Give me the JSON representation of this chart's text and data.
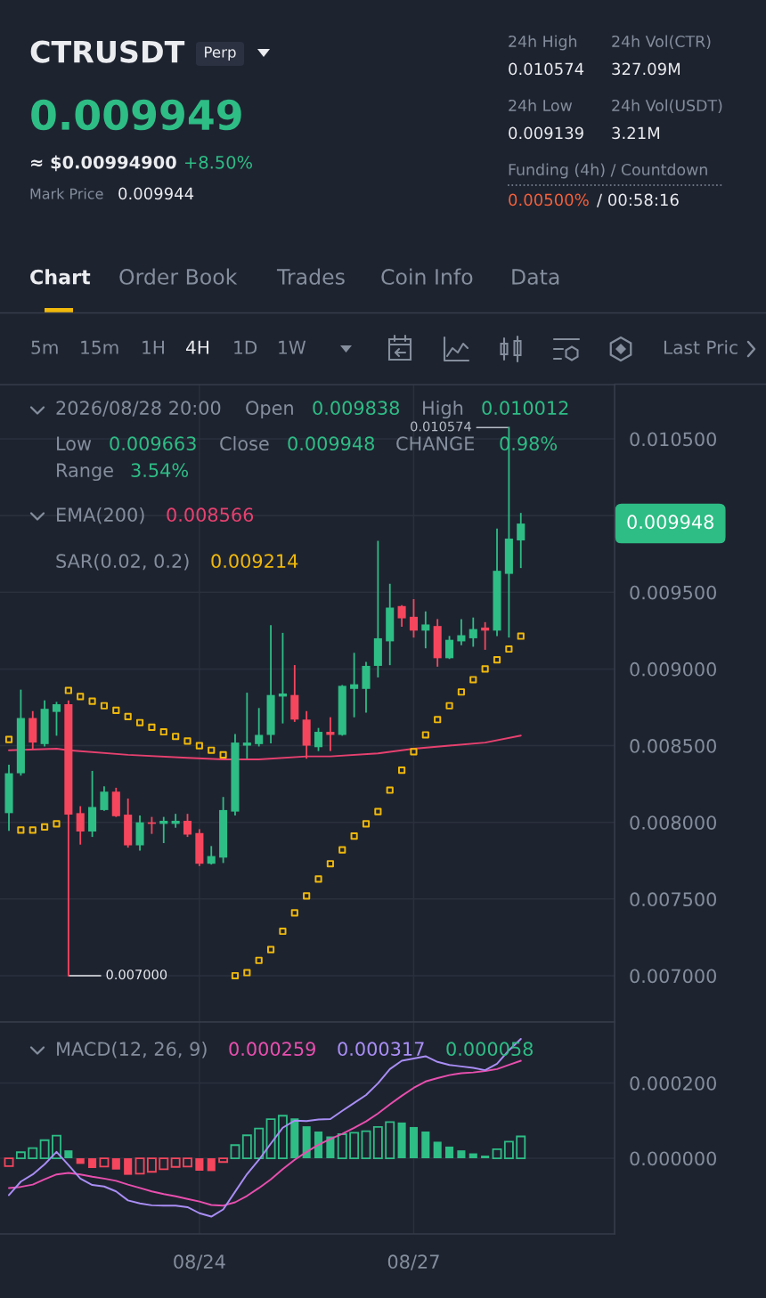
{
  "chart_data": [
    {
      "type": "other",
      "title": "CTRUSDT",
      "annotations": [
        "Perp",
        "0.009949",
        "≈ $0.00994900",
        "+8.50%",
        "Mark Price",
        "0.009944",
        "24h High",
        "24h Vol(CTR)",
        "0.010574",
        "327.09M",
        "24h Low",
        "24h Vol(USDT)",
        "0.009139",
        "3.21M",
        "Funding (4h) / Countdown",
        "0.00500%",
        "/ 00:58:16",
        "Chart",
        "Order Book",
        "Trades",
        "Coin Info",
        "Data",
        "5m",
        "15m",
        "1H",
        "4H",
        "1D",
        "1W",
        "Last Pric"
      ]
    },
    {
      "type": "candlestick",
      "x": [
        "2026-08-21T16:00",
        "2026-08-21T20:00",
        "2026-08-22T00:00",
        "2026-08-22T04:00",
        "2026-08-22T08:00",
        "2026-08-22T12:00",
        "2026-08-22T16:00",
        "2026-08-22T20:00",
        "2026-08-23T00:00",
        "2026-08-23T04:00",
        "2026-08-23T08:00",
        "2026-08-23T12:00",
        "2026-08-23T16:00",
        "2026-08-23T20:00",
        "2026-08-24T00:00",
        "2026-08-24T04:00",
        "2026-08-24T08:00",
        "2026-08-24T12:00",
        "2026-08-24T16:00",
        "2026-08-24T20:00",
        "2026-08-25T00:00",
        "2026-08-25T04:00",
        "2026-08-25T08:00",
        "2026-08-25T12:00",
        "2026-08-25T16:00",
        "2026-08-25T20:00",
        "2026-08-26T00:00",
        "2026-08-26T04:00",
        "2026-08-26T08:00",
        "2026-08-26T12:00",
        "2026-08-26T16:00",
        "2026-08-26T20:00",
        "2026-08-27T00:00",
        "2026-08-27T04:00",
        "2026-08-27T08:00",
        "2026-08-27T12:00",
        "2026-08-27T16:00",
        "2026-08-27T20:00",
        "2026-08-28T00:00",
        "2026-08-28T04:00",
        "2026-08-28T08:00",
        "2026-08-28T12:00",
        "2026-08-28T16:00",
        "2026-08-28T20:00"
      ],
      "ohlc": [
        [
          0.00806,
          0.00837,
          0.00795,
          0.00832
        ],
        [
          0.00832,
          0.00886,
          0.00831,
          0.00868
        ],
        [
          0.00868,
          0.00872,
          0.00848,
          0.00852
        ],
        [
          0.00851,
          0.00879,
          0.0085,
          0.00874
        ],
        [
          0.00872,
          0.00878,
          0.00857,
          0.00877
        ],
        [
          0.00877,
          0.00879,
          0.007,
          0.00805
        ],
        [
          0.00806,
          0.0081,
          0.00786,
          0.00794
        ],
        [
          0.00794,
          0.00833,
          0.00791,
          0.0081
        ],
        [
          0.00808,
          0.00823,
          0.00808,
          0.0082
        ],
        [
          0.0082,
          0.00822,
          0.00804,
          0.00804
        ],
        [
          0.00805,
          0.00815,
          0.00784,
          0.00785
        ],
        [
          0.00785,
          0.00804,
          0.00782,
          0.008
        ],
        [
          0.008,
          0.00803,
          0.00793,
          0.00799
        ],
        [
          0.00799,
          0.00803,
          0.00787,
          0.00801
        ],
        [
          0.00799,
          0.00805,
          0.00797,
          0.00801
        ],
        [
          0.00801,
          0.00805,
          0.00791,
          0.00792
        ],
        [
          0.00793,
          0.00795,
          0.00772,
          0.00773
        ],
        [
          0.00773,
          0.00784,
          0.00773,
          0.00778
        ],
        [
          0.00777,
          0.00816,
          0.00774,
          0.00808
        ],
        [
          0.00807,
          0.00857,
          0.00805,
          0.00852
        ],
        [
          0.0085,
          0.00884,
          0.00842,
          0.00852
        ],
        [
          0.00851,
          0.00874,
          0.0085,
          0.00857
        ],
        [
          0.00857,
          0.00928,
          0.00852,
          0.00883
        ],
        [
          0.00882,
          0.00923,
          0.00865,
          0.00884
        ],
        [
          0.00883,
          0.00902,
          0.00866,
          0.00867
        ],
        [
          0.00867,
          0.00872,
          0.00842,
          0.0085
        ],
        [
          0.00849,
          0.00861,
          0.00847,
          0.00859
        ],
        [
          0.00859,
          0.00868,
          0.00847,
          0.00857
        ],
        [
          0.00857,
          0.00889,
          0.00857,
          0.00889
        ],
        [
          0.00887,
          0.0091,
          0.00869,
          0.0089
        ],
        [
          0.00887,
          0.00904,
          0.00872,
          0.00902
        ],
        [
          0.00902,
          0.00983,
          0.00895,
          0.0092
        ],
        [
          0.00918,
          0.00955,
          0.00903,
          0.0094
        ],
        [
          0.00941,
          0.00941,
          0.00928,
          0.00933
        ],
        [
          0.00934,
          0.00945,
          0.00921,
          0.00925
        ],
        [
          0.00925,
          0.00937,
          0.00914,
          0.00929
        ],
        [
          0.00928,
          0.00932,
          0.00902,
          0.00907
        ],
        [
          0.00907,
          0.00921,
          0.00907,
          0.00919
        ],
        [
          0.00918,
          0.00932,
          0.00916,
          0.00922
        ],
        [
          0.0092,
          0.00933,
          0.00915,
          0.00926
        ],
        [
          0.00927,
          0.0093,
          0.00913,
          0.00925
        ],
        [
          0.00925,
          0.00991,
          0.00922,
          0.00964
        ],
        [
          0.00962,
          0.010574,
          0.00921,
          0.00985
        ],
        [
          0.009838,
          0.010012,
          0.009663,
          0.009948
        ]
      ],
      "colors": [
        "#2ebd85",
        "#2ebd85",
        "#f6465d",
        "#2ebd85",
        "#2ebd85",
        "#f6465d",
        "#f6465d",
        "#2ebd85",
        "#2ebd85",
        "#f6465d",
        "#f6465d",
        "#2ebd85",
        "#f6465d",
        "#2ebd85",
        "#2ebd85",
        "#f6465d",
        "#f6465d",
        "#2ebd85",
        "#2ebd85",
        "#2ebd85",
        "#2ebd85",
        "#2ebd85",
        "#2ebd85",
        "#2ebd85",
        "#f6465d",
        "#f6465d",
        "#2ebd85",
        "#f6465d",
        "#2ebd85",
        "#2ebd85",
        "#2ebd85",
        "#2ebd85",
        "#2ebd85",
        "#f6465d",
        "#f6465d",
        "#2ebd85",
        "#f6465d",
        "#2ebd85",
        "#2ebd85",
        "#2ebd85",
        "#f6465d",
        "#2ebd85",
        "#2ebd85",
        "#2ebd85"
      ],
      "series": [
        {
          "type": "line",
          "color": "#e8416f",
          "x": [
            "2026-08-21T16:00",
            "2026-08-22T08:00",
            "2026-08-22T12:00",
            "2026-08-23T08:00",
            "2026-08-24T04:00",
            "2026-08-24T16:00",
            "2026-08-25T04:00",
            "2026-08-25T20:00",
            "2026-08-26T04:00",
            "2026-08-26T20:00",
            "2026-08-27T08:00",
            "2026-08-27T20:00",
            "2026-08-28T08:00",
            "2026-08-28T20:00"
          ],
          "values": [
            0.00847,
            0.00848,
            0.00847,
            0.00844,
            0.00842,
            0.00841,
            0.00841,
            0.00843,
            0.00843,
            0.00845,
            0.00848,
            0.0085,
            0.00852,
            0.008566
          ]
        },
        {
          "type": "scatter",
          "color": "#f0b90b",
          "marker": "square",
          "values": [
            0.00854,
            0.00795,
            0.00795,
            0.00797,
            0.00799,
            0.00886,
            0.00882,
            0.00879,
            0.00876,
            0.00873,
            0.00869,
            0.00865,
            0.00862,
            0.00859,
            0.00856,
            0.00853,
            0.0085,
            0.00847,
            0.00844,
            0.007,
            0.00702,
            0.0071,
            0.00717,
            0.00729,
            0.00741,
            0.00752,
            0.00763,
            0.00773,
            0.00782,
            0.00791,
            0.00799,
            0.00807,
            0.00821,
            0.00834,
            0.00846,
            0.00857,
            0.00867,
            0.00876,
            0.00885,
            0.00893,
            0.009,
            0.00906,
            0.00913,
            0.009214
          ]
        }
      ],
      "annotations": [
        "2026/08/28 20:00",
        "Open",
        "0.009838",
        "High",
        "0.010012",
        "Low",
        "0.009663",
        "Close",
        "0.009948",
        "CHANGE",
        "0.98%",
        "Range",
        "3.54%",
        "EMA(200)",
        "0.008566",
        "SAR(0.02, 0.2)",
        "0.009214",
        "0.009948",
        {
          "text": "0.010574",
          "x": "2026-08-28T16:00",
          "y": 0.010574
        },
        {
          "text": "0.007000",
          "x": "2026-08-22T12:00",
          "y": 0.007
        }
      ],
      "xlim": [
        "2026-08-21T13:00",
        "2026-08-30T03:30"
      ],
      "xticks": [
        {
          "value": "2026-08-24T08:00",
          "label": null
        },
        {
          "value": "2026-08-27T08:00",
          "label": null
        }
      ],
      "ylim": [
        0.006698,
        0.010854
      ],
      "yticks": [
        {
          "value": 0.007,
          "label": "0.007000"
        },
        {
          "value": 0.0075,
          "label": "0.007500"
        },
        {
          "value": 0.008,
          "label": "0.008000"
        },
        {
          "value": 0.0085,
          "label": "0.008500"
        },
        {
          "value": 0.009,
          "label": "0.009000"
        },
        {
          "value": 0.0095,
          "label": "0.009500"
        },
        {
          "value": 0.01,
          "label": null
        },
        {
          "value": 0.0105,
          "label": "0.010500"
        }
      ],
      "tick_labels": "y",
      "grid": true
    },
    {
      "type": "bar",
      "title": "MACD(12, 26, 9)",
      "x": [
        "2026-08-21T16:00",
        "2026-08-21T20:00",
        "2026-08-22T00:00",
        "2026-08-22T04:00",
        "2026-08-22T08:00",
        "2026-08-22T12:00",
        "2026-08-22T16:00",
        "2026-08-22T20:00",
        "2026-08-23T00:00",
        "2026-08-23T04:00",
        "2026-08-23T08:00",
        "2026-08-23T12:00",
        "2026-08-23T16:00",
        "2026-08-23T20:00",
        "2026-08-24T00:00",
        "2026-08-24T04:00",
        "2026-08-24T08:00",
        "2026-08-24T12:00",
        "2026-08-24T16:00",
        "2026-08-24T20:00",
        "2026-08-25T00:00",
        "2026-08-25T04:00",
        "2026-08-25T08:00",
        "2026-08-25T12:00",
        "2026-08-25T16:00",
        "2026-08-25T20:00",
        "2026-08-26T00:00",
        "2026-08-26T04:00",
        "2026-08-26T08:00",
        "2026-08-26T12:00",
        "2026-08-26T16:00",
        "2026-08-26T20:00",
        "2026-08-27T00:00",
        "2026-08-27T04:00",
        "2026-08-27T08:00",
        "2026-08-27T12:00",
        "2026-08-27T16:00",
        "2026-08-27T20:00",
        "2026-08-28T00:00",
        "2026-08-28T04:00",
        "2026-08-28T08:00",
        "2026-08-28T12:00",
        "2026-08-28T16:00",
        "2026-08-28T20:00"
      ],
      "series": [
        {
          "type": "line",
          "color": "#e84fae",
          "values": [
            -7.9e-05,
            -7.6e-05,
            -7e-05,
            -5.6e-05,
            -4.3e-05,
            -3.9e-05,
            -4.3e-05,
            -4.9e-05,
            -5.4e-05,
            -6e-05,
            -7e-05,
            -7.9e-05,
            -8.8e-05,
            -9.5e-05,
            -0.000101,
            -0.000108,
            -0.000115,
            -0.000124,
            -0.000126,
            -0.000117,
            -0.0001,
            -7.9e-05,
            -5.6e-05,
            -2.9e-05,
            -4e-06,
            1.7e-05,
            3.6e-05,
            5.1e-05,
            6.5e-05,
            8.1e-05,
            9.8e-05,
            0.000119,
            0.000143,
            0.000166,
            0.000187,
            0.000204,
            0.000213,
            0.000221,
            0.000226,
            0.000228,
            0.000232,
            0.000237,
            0.000248,
            0.000259
          ]
        },
        {
          "type": "line",
          "color": "#a98ef5",
          "values": [
            -9.8e-05,
            -6.2e-05,
            -4.3e-05,
            -1.6e-05,
            1.7e-05,
            -1.8e-05,
            -5.4e-05,
            -7.1e-05,
            -7.5e-05,
            -8.8e-05,
            -0.000112,
            -0.00012,
            -0.000125,
            -0.000126,
            -0.000126,
            -0.00013,
            -0.000146,
            -0.000155,
            -0.000136,
            -8.9e-05,
            -4.2e-05,
            -4e-06,
            3.9e-05,
            8.1e-05,
            0.0001,
            9.9e-05,
            0.000103,
            0.000104,
            0.000126,
            0.000147,
            0.000168,
            0.000199,
            0.000237,
            0.000259,
            0.000265,
            0.000271,
            0.000256,
            0.000248,
            0.000244,
            0.00024,
            0.000234,
            0.000251,
            0.000287,
            0.000317
          ]
        },
        {
          "type": "bar",
          "color": "#2ebd85",
          "colors": [
            "#f6465d",
            "#2ebd85",
            "#2ebd85",
            "#2ebd85",
            "#2ebd85",
            "#2ebd85",
            "#f6465d",
            "#f6465d",
            "#f6465d",
            "#f6465d",
            "#f6465d",
            "#f6465d",
            "#f6465d",
            "#f6465d",
            "#f6465d",
            "#f6465d",
            "#f6465d",
            "#f6465d",
            "#f6465d",
            "#2ebd85",
            "#2ebd85",
            "#2ebd85",
            "#2ebd85",
            "#2ebd85",
            "#2ebd85",
            "#2ebd85",
            "#2ebd85",
            "#2ebd85",
            "#2ebd85",
            "#2ebd85",
            "#2ebd85",
            "#2ebd85",
            "#2ebd85",
            "#2ebd85",
            "#2ebd85",
            "#2ebd85",
            "#2ebd85",
            "#2ebd85",
            "#2ebd85",
            "#2ebd85",
            "#2ebd85",
            "#2ebd85",
            "#2ebd85",
            "#2ebd85"
          ],
          "values": [
            -2.1e-05,
            1.6e-05,
            2.7e-05,
            4.8e-05,
            6e-05,
            2.1e-05,
            -1.5e-05,
            -2.6e-05,
            -2.2e-05,
            -3e-05,
            -4.4e-05,
            -4.1e-05,
            -3.6e-05,
            -2.9e-05,
            -2.3e-05,
            -2.2e-05,
            -3.3e-05,
            -3.4e-05,
            -1e-05,
            3.5e-05,
            6.1e-05,
            7.9e-05,
            0.000104,
            0.000113,
            0.000106,
            8.5e-05,
            7.1e-05,
            5.8e-05,
            6.4e-05,
            6.8e-05,
            7.2e-05,
            8.3e-05,
            9.6e-05,
            9.5e-05,
            8.3e-05,
            7.1e-05,
            4.4e-05,
            3.1e-05,
            2.1e-05,
            1.3e-05,
            7e-06,
            2.4e-05,
            4.4e-05,
            5.8e-05
          ]
        }
      ],
      "annotations": [
        "0.000259",
        "0.000317",
        "0.000058"
      ],
      "xlim": [
        "2026-08-21T13:00",
        "2026-08-30T03:30"
      ],
      "xticks": [
        {
          "value": "2026-08-24T08:00",
          "label": "08/24"
        },
        {
          "value": "2026-08-27T08:00",
          "label": "08/27"
        }
      ],
      "ylim": [
        -0.000201,
        0.000362
      ],
      "yticks": [
        {
          "value": 0,
          "label": "0.000000"
        },
        {
          "value": 0.0002,
          "label": "0.000200"
        }
      ],
      "grid": true
    }
  ]
}
